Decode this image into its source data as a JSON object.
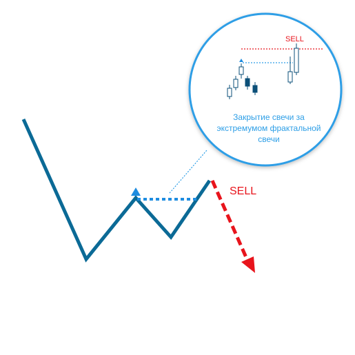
{
  "diagram": {
    "main_sell_label": "SELL",
    "callout": {
      "sell_label": "SELL",
      "text_lines": [
        "Закрытие свечи за",
        "экстремумом фрактальной",
        "свечи"
      ]
    },
    "colors": {
      "price_line": "#0b6a96",
      "fractal_marker": "#1e8ce0",
      "fractal_level": "#1e8ce0",
      "sell": "#e8141c",
      "callout_border": "#2d9ee6",
      "callout_text": "#2d9ee6",
      "candle_outline": "#0b4f78",
      "candle_bear_fill": "#0b4f78",
      "candle_bull_fill": "#ffffff",
      "pointer": "#2d9ee6"
    },
    "icons": {
      "fractal_marker": "triangle-up-icon",
      "sell_arrow": "arrow-down-icon"
    }
  }
}
